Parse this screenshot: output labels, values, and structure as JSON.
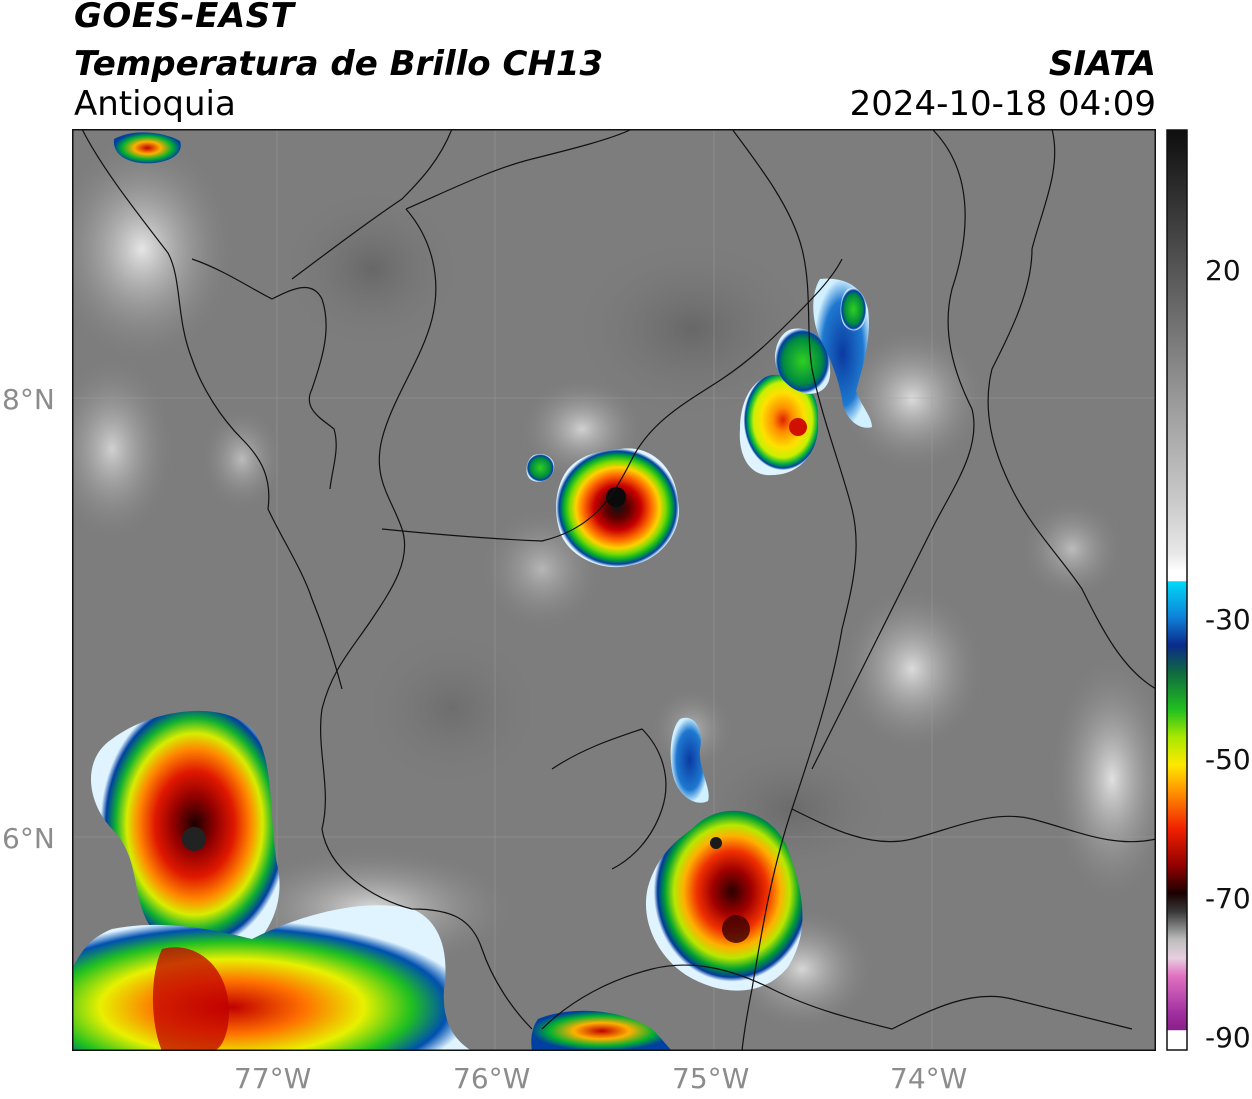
{
  "header": {
    "satellite": "GOES-EAST",
    "product": "Temperatura de Brillo CH13",
    "region": "Antioquia",
    "org": "SIATA",
    "datetime": "2024-10-18 04:09"
  },
  "map": {
    "lat_labels": [
      "8°N",
      "6°N"
    ],
    "lon_labels": [
      "77°W",
      "76°W",
      "75°W",
      "74°W"
    ],
    "lat_values": [
      8,
      6
    ],
    "lon_values": [
      -77,
      -76,
      -75,
      -74
    ],
    "extent": {
      "lon_min": -77.95,
      "lon_max": -73.05,
      "lat_min": 5.05,
      "lat_max": 9.2
    },
    "storm_cells": [
      {
        "name": "central-storm",
        "lon": -75.45,
        "lat": 7.55,
        "min_temp": -72
      },
      {
        "name": "northeast-storm",
        "lon": -74.72,
        "lat": 7.85,
        "min_temp": -60
      },
      {
        "name": "southeast-storm",
        "lon": -74.92,
        "lat": 5.6,
        "min_temp": -70
      },
      {
        "name": "west-storm",
        "lon": -77.3,
        "lat": 5.9,
        "min_temp": -70
      }
    ]
  },
  "colorbar": {
    "ticks": [
      "20",
      "-30",
      "-50",
      "-70",
      "-90"
    ],
    "tick_values": [
      20,
      -30,
      -50,
      -70,
      -90
    ],
    "range": [
      -90,
      40
    ]
  }
}
